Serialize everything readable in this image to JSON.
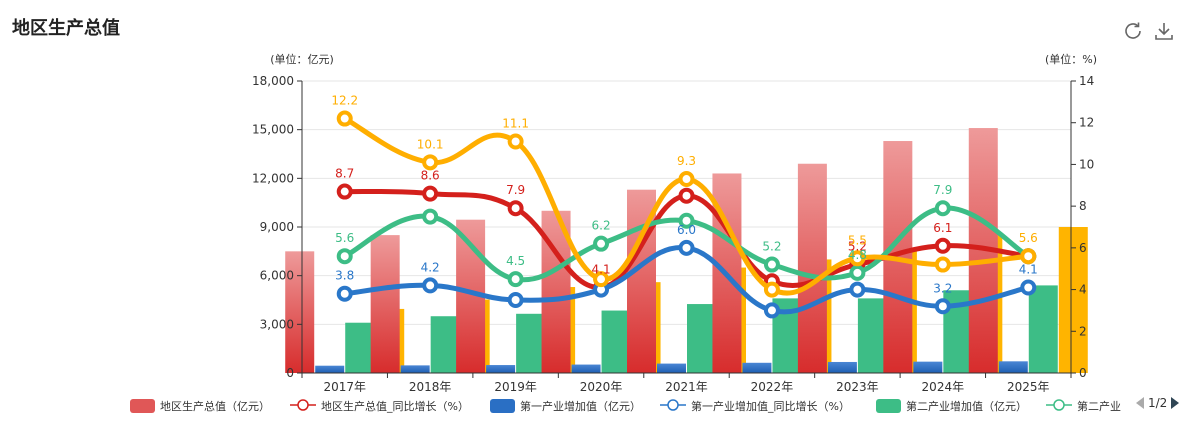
{
  "header": {
    "title": "地区生产总值"
  },
  "toolbar": {
    "refresh_icon": "refresh-icon",
    "download_icon": "download-icon"
  },
  "chart_data": {
    "type": "bar",
    "categories": [
      "2017年",
      "2018年",
      "2019年",
      "2020年",
      "2021年",
      "2022年",
      "2023年",
      "2024年",
      "2025年"
    ],
    "y_left": {
      "label": "(单位：亿元)",
      "min": 0,
      "max": 18000,
      "ticks": [
        "0",
        "3,000",
        "6,000",
        "9,000",
        "12,000",
        "15,000",
        "18,000"
      ]
    },
    "y_right": {
      "label": "(单位：%)",
      "min": 0,
      "max": 14,
      "ticks": [
        "0",
        "2",
        "4",
        "6",
        "8",
        "10",
        "12",
        "14"
      ]
    },
    "bars": [
      {
        "name": "地区生产总值（亿元）",
        "color_top": "#ee9a9a",
        "color_bottom": "#d72c2c",
        "values": [
          7500,
          8500,
          9450,
          10000,
          11300,
          12300,
          12900,
          14300,
          15100
        ]
      },
      {
        "name": "第一产业增加值（亿元）",
        "color_top": "#4a86d4",
        "color_bottom": "#1e5fb3",
        "values": [
          450,
          470,
          490,
          520,
          580,
          630,
          680,
          700,
          720
        ]
      },
      {
        "name": "第二产业增加值（亿元）",
        "color_top": "#3dbd86",
        "color_bottom": "#3dbd86",
        "values": [
          3100,
          3500,
          3650,
          3850,
          4250,
          4600,
          4600,
          5100,
          5400
        ]
      },
      {
        "name": "第三产业增加值（亿元）",
        "color_top": "#ffb400",
        "color_bottom": "#ffb400",
        "values": [
          3950,
          4530,
          5300,
          5600,
          6500,
          7000,
          7600,
          8500,
          9000
        ]
      }
    ],
    "lines": [
      {
        "name": "地区生产总值_同比增长（%）",
        "color": "#d4201c",
        "values": [
          8.7,
          8.6,
          7.9,
          4.1,
          8.5,
          4.4,
          5.2,
          6.1,
          5.6
        ],
        "labels": [
          "8.7",
          "8.6",
          "7.9",
          "4.1",
          "",
          "",
          "5.2",
          "6.1",
          ""
        ]
      },
      {
        "name": "第一产业增加值_同比增长（%）",
        "color": "#2a77c9",
        "values": [
          3.8,
          4.2,
          3.5,
          4.0,
          6.0,
          3.0,
          4.0,
          3.2,
          4.1
        ],
        "labels": [
          "3.8",
          "4.2",
          "",
          "",
          "6.0",
          "",
          "",
          "3.2",
          "4.1"
        ]
      },
      {
        "name": "第二产业增加值_同比增长（%）",
        "color": "#3dbd86",
        "values": [
          5.6,
          7.5,
          4.5,
          6.2,
          7.3,
          5.2,
          4.8,
          7.9,
          5.6
        ],
        "labels": [
          "5.6",
          "",
          "4.5",
          "6.2",
          "",
          "5.2",
          "4.8",
          "7.9",
          ""
        ]
      },
      {
        "name": "第三产业增加值_同比增长（%）",
        "color": "#ffae00",
        "values": [
          12.2,
          10.1,
          11.1,
          4.5,
          9.3,
          4.0,
          5.5,
          5.2,
          5.6
        ],
        "labels": [
          "12.2",
          "10.1",
          "11.1",
          "",
          "9.3",
          "",
          "5.5",
          "",
          "5.6"
        ]
      }
    ]
  },
  "legend": {
    "items": [
      {
        "label": "地区生产总值（亿元）",
        "kind": "bar",
        "color": "#e05757"
      },
      {
        "label": "地区生产总值_同比增长（%）",
        "kind": "line",
        "color": "#d4201c"
      },
      {
        "label": "第一产业增加值（亿元）",
        "kind": "bar",
        "color": "#2a6fc4"
      },
      {
        "label": "第一产业增加值_同比增长（%）",
        "kind": "line",
        "color": "#2a77c9"
      },
      {
        "label": "第二产业增加值（亿元）",
        "kind": "bar",
        "color": "#3dbd86"
      },
      {
        "label": "第二产业",
        "kind": "line",
        "color": "#3dbd86"
      }
    ],
    "page": "1/2"
  }
}
